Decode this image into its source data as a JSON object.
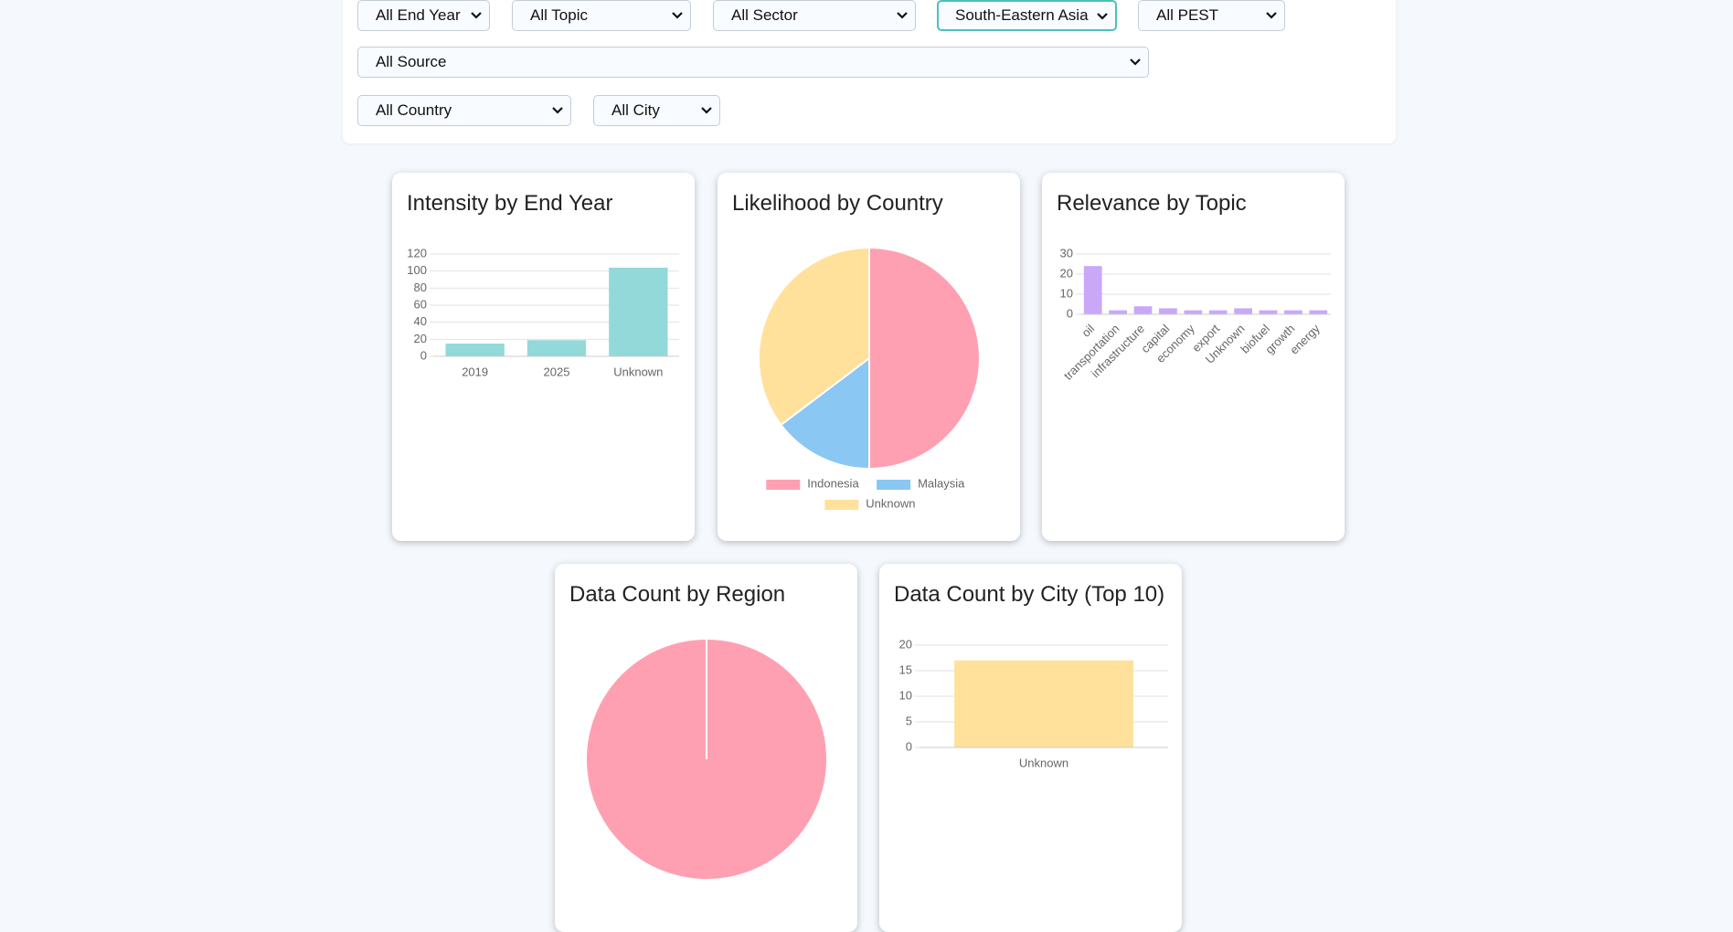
{
  "filters": [
    "All End Year",
    "All Topic",
    "All Sector",
    "South-Eastern Asia",
    "All PEST",
    "All Source",
    "All Country",
    "All City"
  ],
  "chart_data": [
    {
      "type": "bar",
      "title": "Intensity by End Year",
      "categories": [
        "2019",
        "2025",
        "Unknown"
      ],
      "values": [
        15,
        19,
        104
      ],
      "color": "#93d9d9",
      "ylim": [
        0,
        120
      ],
      "yticks": [
        0,
        20,
        40,
        60,
        80,
        100,
        120
      ],
      "grid": true
    },
    {
      "type": "pie",
      "title": "Likelihood by Country",
      "categories": [
        "Indonesia",
        "Malaysia",
        "Unknown"
      ],
      "values": [
        17,
        5,
        12
      ],
      "colors": [
        "#ffa0b2",
        "#8ac7f3",
        "#ffe19b"
      ],
      "legend": "bottom"
    },
    {
      "type": "bar",
      "title": "Relevance by Topic",
      "categories": [
        "oil",
        "transportation",
        "infrastructure",
        "capital",
        "economy",
        "export",
        "Unknown",
        "biofuel",
        "growth",
        "energy"
      ],
      "values": [
        24,
        2,
        4,
        3,
        2,
        2,
        3,
        2,
        2,
        2
      ],
      "color": "#c9a8f7",
      "ylim": [
        0,
        30
      ],
      "yticks": [
        0,
        10,
        20,
        30
      ],
      "grid": true,
      "rotate_labels": true
    },
    {
      "type": "pie",
      "title": "Data Count by Region",
      "categories": [
        null
      ],
      "values": [
        17
      ],
      "colors": [
        "#ffa0b2"
      ]
    },
    {
      "type": "bar",
      "title": "Data Count by City (Top 10)",
      "categories": [
        "Unknown"
      ],
      "values": [
        17
      ],
      "color": "#ffe19b",
      "ylim": [
        0,
        20
      ],
      "yticks": [
        0,
        5,
        10,
        15,
        20
      ],
      "grid": true
    }
  ]
}
